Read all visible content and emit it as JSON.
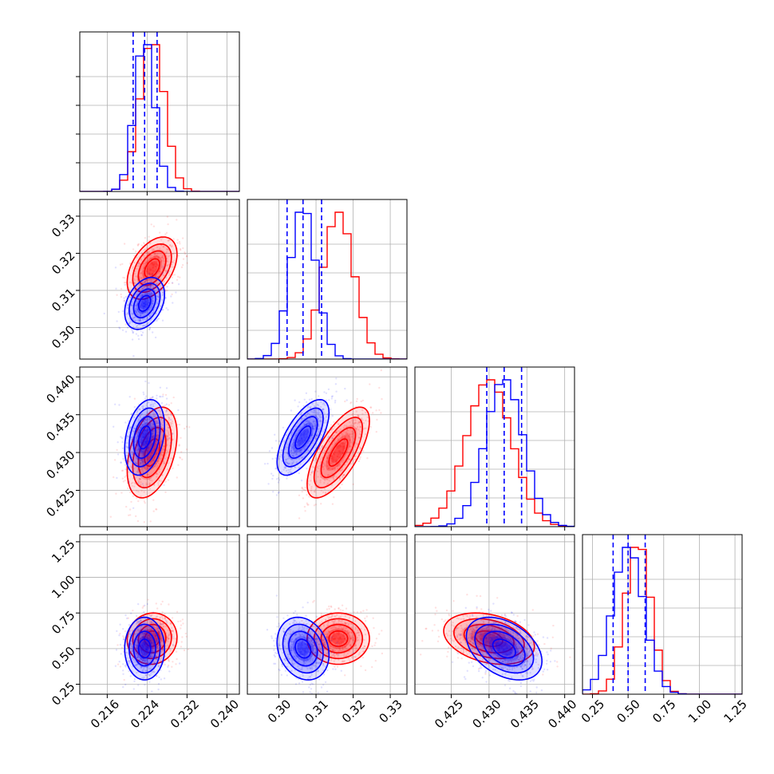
{
  "chart_data": {
    "type": "corner",
    "grid": true,
    "colors": {
      "red": "#ff0000",
      "blue": "#0000ff"
    },
    "series": [
      {
        "color": "red",
        "means": [
          0.225,
          0.316,
          0.43,
          0.57
        ],
        "sds": [
          0.0025,
          0.0042,
          0.003,
          0.09
        ],
        "corr": [
          [
            1,
            0.45,
            0.4,
            0.05
          ],
          [
            0.45,
            1,
            0.7,
            0.0
          ],
          [
            0.4,
            0.7,
            1,
            -0.3
          ],
          [
            0.05,
            0.0,
            -0.3,
            1
          ]
        ]
      },
      {
        "color": "blue",
        "means": [
          0.2235,
          0.3065,
          0.432,
          0.5
        ],
        "sds": [
          0.002,
          0.0035,
          0.0025,
          0.11
        ],
        "corr": [
          [
            1,
            0.35,
            0.3,
            0.0
          ],
          [
            0.35,
            1,
            0.65,
            -0.2
          ],
          [
            0.3,
            0.65,
            1,
            -0.4
          ],
          [
            0.0,
            -0.2,
            -0.4,
            1
          ]
        ]
      }
    ],
    "quantile_lines": {
      "color": "blue",
      "values": [
        [
          0.2212,
          0.2235,
          0.226
        ],
        [
          0.3022,
          0.3065,
          0.3115
        ],
        [
          0.4297,
          0.432,
          0.4343
        ],
        [
          0.395,
          0.5,
          0.62
        ]
      ]
    },
    "axes": [
      {
        "range": [
          0.2105,
          0.2425
        ],
        "ticks": [
          0.216,
          0.224,
          0.232,
          0.24
        ],
        "tick_labels": [
          "0.216",
          "0.224",
          "0.232",
          "0.240"
        ]
      },
      {
        "range": [
          0.2915,
          0.3345
        ],
        "ticks": [
          0.3,
          0.31,
          0.32,
          0.33
        ],
        "tick_labels": [
          "0.30",
          "0.31",
          "0.32",
          "0.33"
        ]
      },
      {
        "range": [
          0.4202,
          0.4413
        ],
        "ticks": [
          0.425,
          0.43,
          0.435,
          0.44
        ],
        "tick_labels": [
          "0.425",
          "0.430",
          "0.435",
          "0.440"
        ]
      },
      {
        "range": [
          0.18,
          1.3
        ],
        "ticks": [
          0.25,
          0.5,
          0.75,
          1.0,
          1.25
        ],
        "tick_labels": [
          "0.25",
          "0.50",
          "0.75",
          "1.00",
          "1.25"
        ]
      }
    ]
  }
}
